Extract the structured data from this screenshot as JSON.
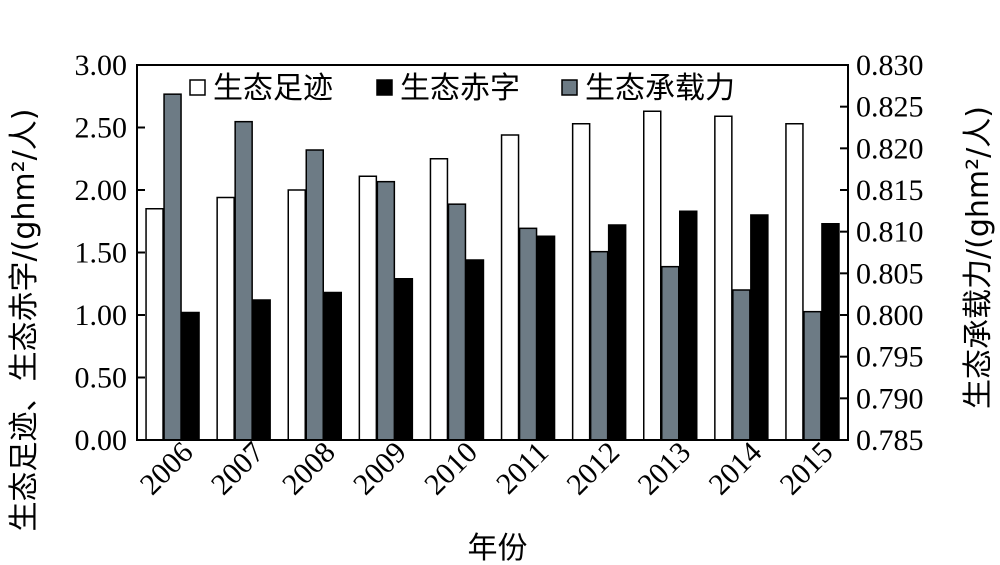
{
  "chart_data": {
    "type": "bar",
    "categories": [
      "2006",
      "2007",
      "2008",
      "2009",
      "2010",
      "2011",
      "2012",
      "2013",
      "2014",
      "2015"
    ],
    "xlabel": "年份",
    "ylabel_left": "生态足迹、生态赤字/(ghm²/人)",
    "ylabel_right": "生态承载力/(ghm²/人)",
    "left_axis": {
      "ylim": [
        0,
        3
      ],
      "ticks": [
        "0.00",
        "0.50",
        "1.00",
        "1.50",
        "2.00",
        "2.50",
        "3.00"
      ]
    },
    "right_axis": {
      "ylim": [
        0.785,
        0.83
      ],
      "ticks": [
        "0.785",
        "0.790",
        "0.795",
        "0.800",
        "0.805",
        "0.810",
        "0.815",
        "0.820",
        "0.825",
        "0.830"
      ]
    },
    "series": [
      {
        "name": "生态足迹",
        "axis": "left",
        "color": "#ffffff",
        "values": [
          1.85,
          1.94,
          2.0,
          2.11,
          2.25,
          2.44,
          2.53,
          2.63,
          2.59,
          2.53
        ]
      },
      {
        "name": "生态承载力",
        "axis": "right",
        "color": "#6d7b85",
        "values": [
          0.8265,
          0.8232,
          0.8198,
          0.816,
          0.8133,
          0.8104,
          0.8076,
          0.8058,
          0.803,
          0.8004
        ]
      },
      {
        "name": "生态赤字",
        "axis": "left",
        "color": "#000000",
        "values": [
          1.02,
          1.12,
          1.18,
          1.29,
          1.44,
          1.63,
          1.72,
          1.83,
          1.8,
          1.73
        ]
      }
    ],
    "legend": [
      "生态足迹",
      "生态赤字",
      "生态承载力"
    ],
    "legend_position": "top",
    "grid": false
  }
}
